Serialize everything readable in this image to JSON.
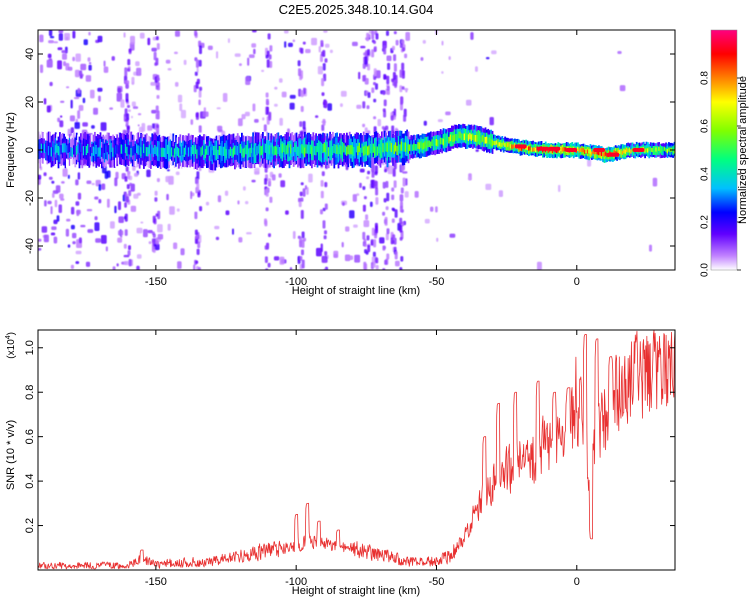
{
  "figure_title": "C2E5.2025.348.10.14.G04",
  "chart_data": [
    {
      "type": "heatmap",
      "name": "spectrogram",
      "xlabel": "Height of straight line (km)",
      "ylabel": "Frequency (Hz)",
      "xlim": [
        -192,
        35
      ],
      "ylim": [
        -50,
        50
      ],
      "xticks": [
        -150,
        -100,
        -50,
        0
      ],
      "yticks": [
        -40,
        -20,
        0,
        20,
        40
      ],
      "xtick_labels": [
        "-150",
        "-100",
        "-50",
        "0"
      ],
      "ytick_labels": [
        "-40",
        "-20",
        "0",
        "20",
        "40"
      ],
      "colorbar": {
        "label": "Normalized spectral amplitude",
        "range": [
          0,
          1
        ],
        "ticks": [
          0.0,
          0.2,
          0.4,
          0.6,
          0.8
        ],
        "tick_labels": [
          "0.0",
          "0.2",
          "0.4",
          "0.6",
          "0.8"
        ],
        "colors": [
          "#ffffff",
          "#c080ff",
          "#6000ff",
          "#0000ff",
          "#00c0ff",
          "#00ff80",
          "#80ff00",
          "#ffff00",
          "#ff8000",
          "#ff0000",
          "#ff0080"
        ]
      },
      "ridge_frequency_hz": [
        [
          -185,
          0.0
        ],
        [
          -160,
          0.0
        ],
        [
          -130,
          -1.0
        ],
        [
          -110,
          0.0
        ],
        [
          -90,
          0.0
        ],
        [
          -75,
          0.0
        ],
        [
          -60,
          1.0
        ],
        [
          -50,
          3.0
        ],
        [
          -42,
          6.0
        ],
        [
          -35,
          5.0
        ],
        [
          -30,
          3.0
        ],
        [
          -20,
          1.0
        ],
        [
          -10,
          0.0
        ],
        [
          0,
          0.0
        ],
        [
          10,
          -2.0
        ],
        [
          20,
          0.0
        ],
        [
          35,
          0.0
        ]
      ],
      "ridge_amplitude": [
        [
          -185,
          0.3
        ],
        [
          -160,
          0.35
        ],
        [
          -120,
          0.45
        ],
        [
          -90,
          0.5
        ],
        [
          -60,
          0.55
        ],
        [
          -50,
          0.6
        ],
        [
          -40,
          0.65
        ],
        [
          -30,
          0.7
        ],
        [
          -20,
          0.85
        ],
        [
          -10,
          0.95
        ],
        [
          0,
          0.8
        ],
        [
          10,
          0.95
        ],
        [
          20,
          0.7
        ],
        [
          35,
          0.6
        ]
      ]
    },
    {
      "type": "line",
      "name": "snr",
      "xlabel": "Height of straight line (km)",
      "ylabel": "SNR (10 * v/v)",
      "y_multiplier": "(x10",
      "y_multiplier_exp": "4",
      "y_multiplier_close": ")",
      "xlim": [
        -192,
        35
      ],
      "ylim": [
        0,
        1.08
      ],
      "xticks": [
        -150,
        -100,
        -50,
        0
      ],
      "yticks": [
        0.2,
        0.4,
        0.6,
        0.8,
        1.0
      ],
      "xtick_labels": [
        "-150",
        "-100",
        "-50",
        "0"
      ],
      "ytick_labels": [
        "0.2",
        "0.4",
        "0.6",
        "0.8",
        "1.0"
      ],
      "line_color": "#e83030",
      "envelope": [
        [
          -192,
          0.02
        ],
        [
          -160,
          0.02
        ],
        [
          -155,
          0.05
        ],
        [
          -150,
          0.03
        ],
        [
          -130,
          0.04
        ],
        [
          -115,
          0.08
        ],
        [
          -100,
          0.11
        ],
        [
          -95,
          0.14
        ],
        [
          -90,
          0.12
        ],
        [
          -80,
          0.1
        ],
        [
          -70,
          0.07
        ],
        [
          -60,
          0.04
        ],
        [
          -50,
          0.04
        ],
        [
          -45,
          0.07
        ],
        [
          -40,
          0.15
        ],
        [
          -35,
          0.3
        ],
        [
          -30,
          0.4
        ],
        [
          -25,
          0.45
        ],
        [
          -20,
          0.5
        ],
        [
          -15,
          0.55
        ],
        [
          -10,
          0.58
        ],
        [
          -5,
          0.62
        ],
        [
          0,
          0.7
        ],
        [
          2,
          0.85
        ],
        [
          4,
          0.35
        ],
        [
          6,
          0.55
        ],
        [
          10,
          0.75
        ],
        [
          15,
          0.82
        ],
        [
          20,
          0.88
        ],
        [
          25,
          0.9
        ],
        [
          30,
          0.92
        ],
        [
          35,
          0.95
        ]
      ],
      "spikes": [
        [
          -155,
          0.09
        ],
        [
          -100,
          0.25
        ],
        [
          -96,
          0.3
        ],
        [
          -92,
          0.22
        ],
        [
          -85,
          0.18
        ],
        [
          -33,
          0.6
        ],
        [
          -28,
          0.75
        ],
        [
          -22,
          0.8
        ],
        [
          -14,
          0.85
        ],
        [
          -8,
          0.8
        ],
        [
          -3,
          0.82
        ],
        [
          3,
          1.06
        ],
        [
          5,
          0.14
        ],
        [
          7,
          1.04
        ],
        [
          12,
          0.96
        ]
      ]
    }
  ]
}
